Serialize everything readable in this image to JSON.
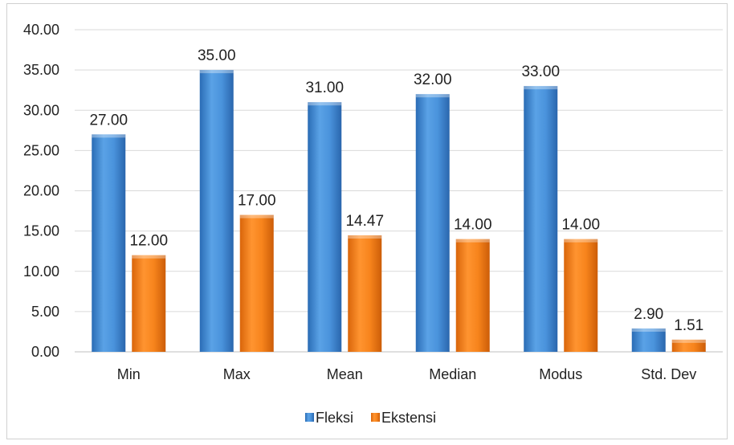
{
  "chart_data": {
    "type": "bar",
    "categories": [
      "Min",
      "Max",
      "Mean",
      "Median",
      "Modus",
      "Std. Dev"
    ],
    "series": [
      {
        "name": "Fleksi",
        "values": [
          27.0,
          35.0,
          31.0,
          32.0,
          33.0,
          2.9
        ],
        "labels": [
          "27.00",
          "35.00",
          "31.00",
          "32.00",
          "33.00",
          "2.90"
        ],
        "color": "#3f86d0"
      },
      {
        "name": "Ekstensi",
        "values": [
          12.0,
          17.0,
          14.47,
          14.0,
          14.0,
          1.51
        ],
        "labels": [
          "12.00",
          "17.00",
          "14.47",
          "14.00",
          "14.00",
          "1.51"
        ],
        "color": "#ef7a12"
      }
    ],
    "y_ticks": [
      "0.00",
      "5.00",
      "10.00",
      "15.00",
      "20.00",
      "25.00",
      "30.00",
      "35.00",
      "40.00"
    ],
    "ylim": [
      0,
      40
    ],
    "grid": true,
    "legend_position": "bottom",
    "title": "",
    "xlabel": "",
    "ylabel": ""
  }
}
